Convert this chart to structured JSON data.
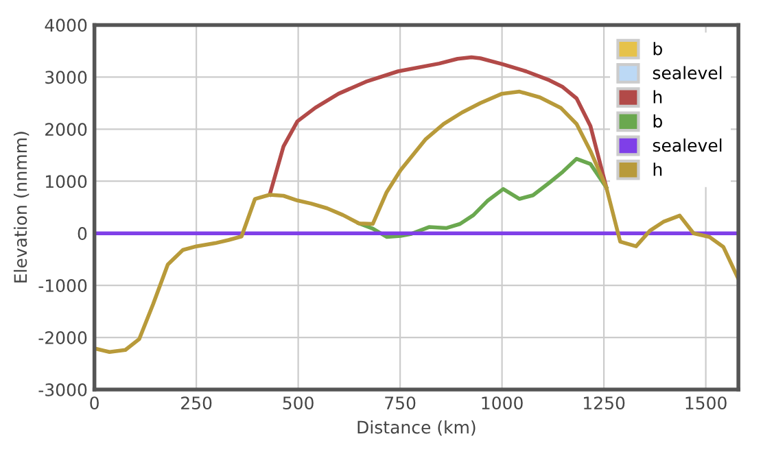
{
  "chart_data": {
    "type": "line",
    "xlabel": "Distance (km)",
    "ylabel": "Elevation (nnmm)",
    "xlim": [
      0,
      1580
    ],
    "ylim": [
      -3000,
      4000
    ],
    "xticks": [
      0,
      250,
      500,
      750,
      1000,
      1250,
      1500
    ],
    "yticks": [
      -3000,
      -2000,
      -1000,
      0,
      1000,
      2000,
      3000,
      4000
    ],
    "grid": true,
    "legend": "top right",
    "marker": "none",
    "line_style": "solid",
    "series": [
      {
        "name": "b",
        "color": "#e6c24a"
      },
      {
        "name": "sealevel",
        "color": "#bcd9f5"
      },
      {
        "name": "h",
        "color": "#b24a48",
        "x": [
          430,
          464,
          498,
          542,
          599,
          666,
          745,
          846,
          891,
          925,
          947,
          1000,
          1059,
          1116,
          1149,
          1183,
          1217,
          1256
        ],
        "values": [
          740,
          1670,
          2150,
          2410,
          2680,
          2910,
          3110,
          3260,
          3350,
          3380,
          3360,
          3250,
          3110,
          2940,
          2810,
          2590,
          2060,
          880
        ]
      },
      {
        "name": "b",
        "color": "#6aa84f",
        "x": [
          649,
          683,
          717,
          751,
          778,
          821,
          863,
          897,
          930,
          964,
          1003,
          1043,
          1076,
          1116,
          1149,
          1183,
          1217,
          1256
        ],
        "values": [
          190,
          90,
          -70,
          -50,
          -10,
          120,
          100,
          180,
          350,
          620,
          850,
          660,
          730,
          970,
          1180,
          1430,
          1330,
          880
        ]
      },
      {
        "name": "sealevel",
        "color": "#7f3fe8",
        "x": [
          0,
          1580
        ],
        "values": [
          0,
          0
        ]
      },
      {
        "name": "h",
        "color": "#b89a3a",
        "x": [
          0,
          37,
          76,
          110,
          144,
          180,
          217,
          250,
          296,
          329,
          361,
          394,
          430,
          464,
          498,
          532,
          571,
          610,
          649,
          683,
          717,
          751,
          812,
          857,
          902,
          947,
          1000,
          1043,
          1093,
          1144,
          1183,
          1217,
          1256,
          1290,
          1329,
          1363,
          1396,
          1436,
          1470,
          1509,
          1543,
          1579
        ],
        "values": [
          -2210,
          -2280,
          -2240,
          -2030,
          -1360,
          -600,
          -320,
          -250,
          -190,
          -130,
          -60,
          660,
          740,
          720,
          630,
          570,
          480,
          350,
          190,
          180,
          790,
          1210,
          1800,
          2100,
          2320,
          2500,
          2680,
          2720,
          2610,
          2410,
          2100,
          1580,
          880,
          -160,
          -250,
          50,
          220,
          340,
          0,
          -70,
          -260,
          -860
        ]
      }
    ]
  }
}
